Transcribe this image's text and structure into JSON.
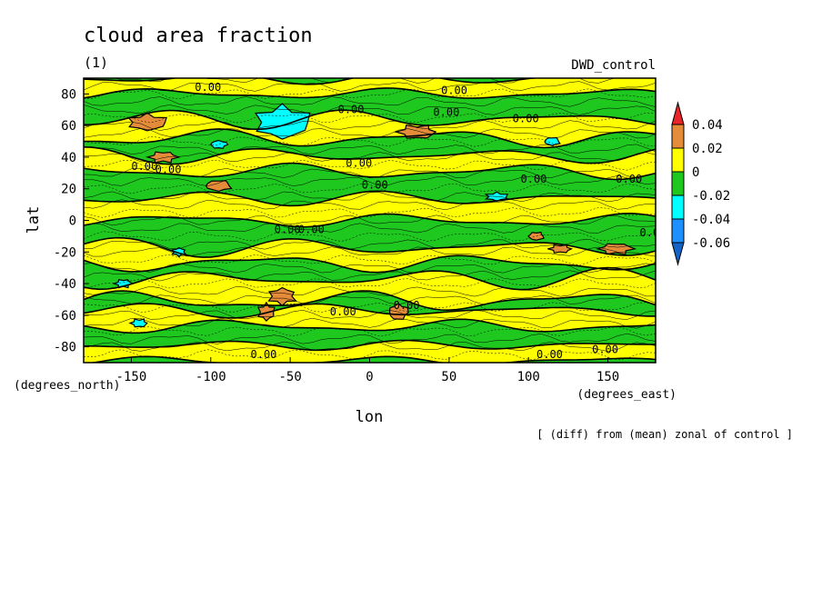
{
  "chart_data": {
    "type": "heatmap",
    "title": "cloud area fraction",
    "subtitle": "(1)",
    "run_label": "DWD_control",
    "xlabel": "lon",
    "ylabel": "lat",
    "x_units": "(degrees_east)",
    "y_units": "(degrees_north)",
    "footnote": "[ (diff) from (mean) zonal of control ]",
    "xlim": [
      -180,
      180
    ],
    "ylim": [
      -90,
      90
    ],
    "xticks": [
      -150,
      -100,
      -50,
      0,
      50,
      100,
      150
    ],
    "yticks": [
      -80,
      -60,
      -40,
      -20,
      0,
      20,
      40,
      60,
      80
    ],
    "colorbar": {
      "levels": [
        "0.04",
        "0.02",
        "0",
        "-0.02",
        "-0.04",
        "-0.06"
      ],
      "colors": [
        "#e8262a",
        "#e58c3a",
        "#ffff00",
        "#1ec81e",
        "#00ffff",
        "#1e90ff",
        "#1464c8"
      ]
    },
    "contour_label": "0.00",
    "contour_label_positions": [
      [
        -60,
        90
      ],
      [
        -110,
        82
      ],
      [
        45,
        80
      ],
      [
        -20,
        68
      ],
      [
        40,
        66
      ],
      [
        90,
        62
      ],
      [
        -150,
        32
      ],
      [
        -135,
        30
      ],
      [
        -15,
        34
      ],
      [
        95,
        24
      ],
      [
        155,
        24
      ],
      [
        -5,
        20
      ],
      [
        -60,
        -8
      ],
      [
        -45,
        -8
      ],
      [
        170,
        -10
      ],
      [
        -75,
        -87
      ],
      [
        105,
        -87
      ],
      [
        140,
        -84
      ],
      [
        15,
        -56
      ],
      [
        -25,
        -60
      ]
    ],
    "orange_patches": [
      [
        -140,
        62,
        14,
        6
      ],
      [
        -55,
        68,
        6,
        4
      ],
      [
        -130,
        40,
        10,
        4
      ],
      [
        30,
        56,
        14,
        5
      ],
      [
        -95,
        22,
        10,
        4
      ],
      [
        -55,
        -48,
        10,
        6
      ],
      [
        -65,
        -58,
        6,
        6
      ],
      [
        18,
        -58,
        7,
        6
      ],
      [
        155,
        -18,
        12,
        4
      ],
      [
        120,
        -18,
        8,
        3
      ],
      [
        105,
        -10,
        6,
        3
      ]
    ],
    "cyan_patches": [
      [
        -55,
        62,
        20,
        12
      ],
      [
        -95,
        48,
        6,
        3
      ],
      [
        -155,
        -40,
        6,
        3
      ],
      [
        -145,
        -65,
        6,
        3
      ],
      [
        115,
        50,
        6,
        3
      ],
      [
        -120,
        -20,
        5,
        3
      ],
      [
        80,
        15,
        8,
        3
      ]
    ]
  }
}
